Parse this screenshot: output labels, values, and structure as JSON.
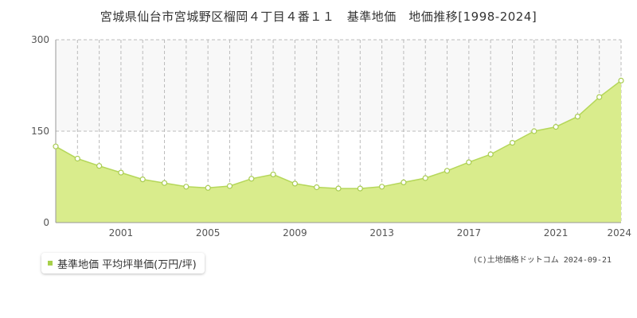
{
  "page": {
    "title": "宮城県仙台市宮城野区榴岡４丁目４番１１　基準地価　地価推移[1998-2024]",
    "credit": "(C)土地価格ドットコム 2024-09-21"
  },
  "legend": {
    "label": "基準地価 平均坪単価(万円/坪)"
  },
  "colors": {
    "fill": "#d9ec8c",
    "line": "#b5d75a",
    "marker_stroke": "#a9cc52",
    "marker_fill": "#ffffff",
    "legend_swatch": "#a7d04a",
    "grid": "#bbbbbb",
    "band": "#f8f8f8",
    "axis": "#999999"
  },
  "chart_data": {
    "type": "area",
    "title": "宮城県仙台市宮城野区榴岡４丁目４番１１　基準地価　地価推移[1998-2024]",
    "xlabel": "",
    "ylabel": "",
    "ylim": [
      0,
      300
    ],
    "xlim": [
      1998,
      2024
    ],
    "y_ticks": [
      0,
      150,
      300
    ],
    "x_ticks": [
      2001,
      2005,
      2009,
      2013,
      2017,
      2021,
      2024
    ],
    "grid": true,
    "legend_position": "bottom-left",
    "series": [
      {
        "name": "基準地価 平均坪単価(万円/坪)",
        "x": [
          1998,
          1999,
          2000,
          2001,
          2002,
          2003,
          2004,
          2005,
          2006,
          2007,
          2008,
          2009,
          2010,
          2011,
          2012,
          2013,
          2014,
          2015,
          2016,
          2017,
          2018,
          2019,
          2020,
          2021,
          2022,
          2023,
          2024
        ],
        "values": [
          125,
          105,
          93,
          82,
          71,
          65,
          59,
          57,
          60,
          72,
          79,
          64,
          58,
          56,
          56,
          59,
          66,
          73,
          85,
          99,
          112,
          131,
          150,
          157,
          174,
          206,
          233
        ]
      }
    ]
  }
}
